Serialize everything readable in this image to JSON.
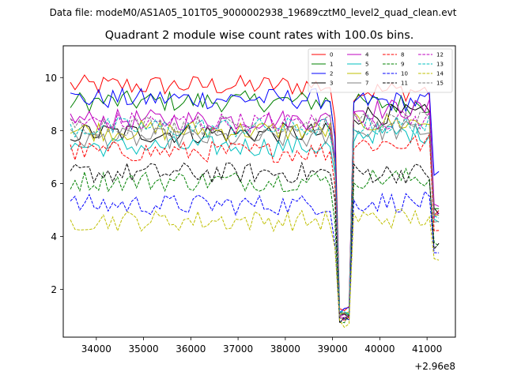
{
  "suptitle": "Data file: modeM0/AS1A05_101T05_9000002938_19689cztM0_level2_quad_clean.evt",
  "chart_data": {
    "type": "line",
    "title": "Quadrant 2 module wise count rates with 100.0s bins.",
    "xlabel": "",
    "ylabel": "",
    "x_offset_label": "+2.96e8",
    "xlim": [
      33300,
      41600
    ],
    "ylim": [
      0.2,
      11.2
    ],
    "x_ticks": [
      34000,
      35000,
      36000,
      37000,
      38000,
      39000,
      40000,
      41000
    ],
    "x_tick_labels": [
      "34000",
      "35000",
      "36000",
      "37000",
      "38000",
      "39000",
      "40000",
      "41000"
    ],
    "y_ticks": [
      2,
      4,
      6,
      8,
      10
    ],
    "y_tick_labels": [
      "2",
      "4",
      "6",
      "8",
      "10"
    ],
    "x_start": 33450,
    "x_step": 100,
    "n_points": 79,
    "grid": false,
    "legend_position": "top-right",
    "series": [
      {
        "name": "0",
        "color": "#ff0000",
        "dash": "solid",
        "base": 9.7,
        "dip": 1.3,
        "post": 9.5,
        "end": 4.8
      },
      {
        "name": "1",
        "color": "#008000",
        "dash": "solid",
        "base": 9.1,
        "dip": 1.2,
        "post": 9.0,
        "end": 5.2
      },
      {
        "name": "2",
        "color": "#0000ff",
        "dash": "solid",
        "base": 9.2,
        "dip": 1.2,
        "post": 9.1,
        "end": 6.3
      },
      {
        "name": "3",
        "color": "#000000",
        "dash": "solid",
        "base": 7.9,
        "dip": 1.0,
        "post": 8.6,
        "end": 5.0
      },
      {
        "name": "4",
        "color": "#bf00bf",
        "dash": "solid",
        "base": 8.4,
        "dip": 1.1,
        "post": 8.8,
        "end": 5.3
      },
      {
        "name": "5",
        "color": "#00bfbf",
        "dash": "solid",
        "base": 7.4,
        "dip": 1.0,
        "post": 7.9,
        "end": 4.7
      },
      {
        "name": "6",
        "color": "#bfbf00",
        "dash": "solid",
        "base": 8.0,
        "dip": 1.0,
        "post": 8.3,
        "end": 4.9
      },
      {
        "name": "7",
        "color": "#808080",
        "dash": "solid",
        "base": 7.7,
        "dip": 1.1,
        "post": 8.0,
        "end": 4.6
      },
      {
        "name": "8",
        "color": "#ff0000",
        "dash": "dashed",
        "base": 7.2,
        "dip": 1.0,
        "post": 7.5,
        "end": 4.2
      },
      {
        "name": "9",
        "color": "#008000",
        "dash": "dashed",
        "base": 6.1,
        "dip": 0.9,
        "post": 6.2,
        "end": 3.8
      },
      {
        "name": "10",
        "color": "#0000ff",
        "dash": "dashed",
        "base": 5.2,
        "dip": 0.8,
        "post": 5.3,
        "end": 3.2
      },
      {
        "name": "11",
        "color": "#000000",
        "dash": "dashed",
        "base": 6.4,
        "dip": 0.9,
        "post": 6.4,
        "end": 3.6
      },
      {
        "name": "12",
        "color": "#bf00bf",
        "dash": "dashed",
        "base": 8.3,
        "dip": 1.1,
        "post": 8.4,
        "end": 4.8
      },
      {
        "name": "13",
        "color": "#00bfbf",
        "dash": "dashed",
        "base": 8.1,
        "dip": 1.0,
        "post": 8.2,
        "end": 4.6
      },
      {
        "name": "14",
        "color": "#bfbf00",
        "dash": "dashed",
        "base": 4.6,
        "dip": 0.7,
        "post": 4.7,
        "end": 3.0
      },
      {
        "name": "15",
        "color": "#808080",
        "dash": "dashed",
        "base": 8.2,
        "dip": 1.0,
        "post": 8.3,
        "end": 4.7
      }
    ]
  }
}
